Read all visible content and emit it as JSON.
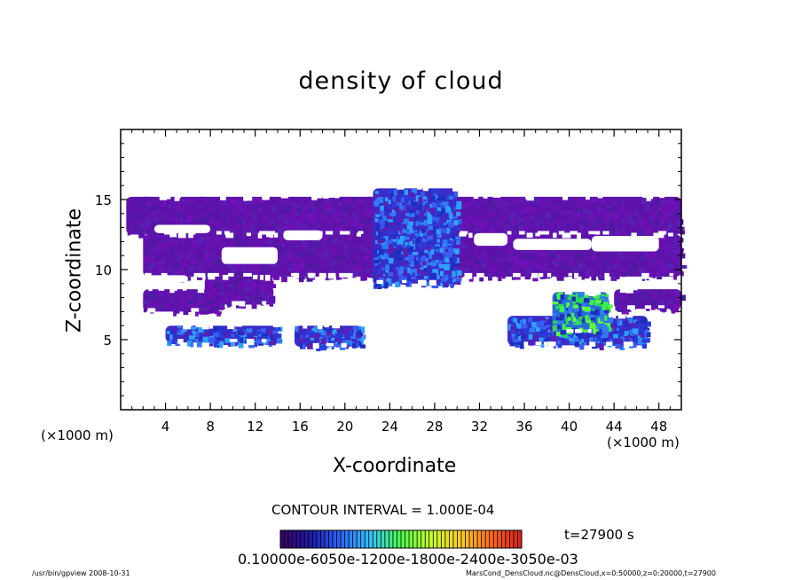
{
  "chart_data": {
    "type": "heatmap",
    "title": "density of cloud",
    "xlabel": "X-coordinate",
    "ylabel": "Z-coordinate",
    "x_unit": "(×1000 m)",
    "z_unit": "(×1000 m)",
    "xlim": [
      0,
      50
    ],
    "ylim": [
      0,
      20
    ],
    "x_ticks": [
      4,
      8,
      12,
      16,
      20,
      24,
      28,
      32,
      36,
      40,
      44,
      48
    ],
    "y_ticks": [
      5,
      10,
      15
    ],
    "contour_interval": "CONTOUR INTERVAL = 1.000E-04",
    "time": "t=27900 s",
    "colorbar_labels": "0.10000e-6050e-1200e-1800e-2400e-3050e-03",
    "colorbar_colors": [
      "#3a0063",
      "#1d1aa8",
      "#2b66ff",
      "#33c4ff",
      "#4cff4c",
      "#c8ff2e",
      "#ffcc26",
      "#ff6a1f",
      "#d81c1c"
    ],
    "cloud_regions": [
      {
        "x": [
          0.5,
          50
        ],
        "z": [
          12.5,
          15.2
        ],
        "level": "low"
      },
      {
        "x": [
          2,
          50
        ],
        "z": [
          9.5,
          12.5
        ],
        "level": "low"
      },
      {
        "x": [
          22.5,
          30
        ],
        "z": [
          9,
          15.8
        ],
        "level": "medium"
      },
      {
        "x": [
          2,
          9
        ],
        "z": [
          7,
          8.6
        ],
        "level": "low"
      },
      {
        "x": [
          7.5,
          13.5
        ],
        "z": [
          7.5,
          9.5
        ],
        "level": "low"
      },
      {
        "x": [
          4,
          14
        ],
        "z": [
          4.8,
          6
        ],
        "level": "medium"
      },
      {
        "x": [
          15.5,
          21.5
        ],
        "z": [
          4.5,
          6
        ],
        "level": "medium"
      },
      {
        "x": [
          34.5,
          47
        ],
        "z": [
          4.6,
          6.7
        ],
        "level": "medium"
      },
      {
        "x": [
          38.5,
          43.5
        ],
        "z": [
          5.5,
          8.4
        ],
        "level": "high"
      },
      {
        "x": [
          44,
          50
        ],
        "z": [
          7.2,
          8.6
        ],
        "level": "low"
      }
    ]
  },
  "footer": {
    "left": "/usr/bin/gpview   2008-10-31",
    "right": "MarsCond_DensCloud.nc@DensCloud,x=0:50000,z=0:20000,t=27900"
  }
}
